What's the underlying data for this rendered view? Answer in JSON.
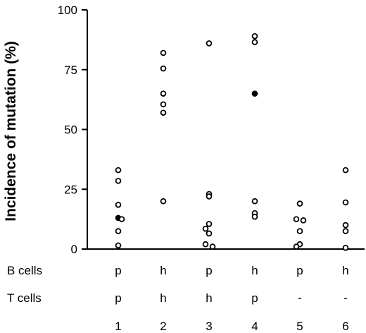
{
  "chart_data": {
    "type": "scatter",
    "ylabel": "Incidence of mutation (%)",
    "ylim": [
      0,
      100
    ],
    "yticks": [
      "0",
      "25",
      "50",
      "75",
      "100"
    ],
    "categories": [
      "1",
      "2",
      "3",
      "4",
      "5",
      "6"
    ],
    "rows": [
      {
        "label": "B cells",
        "values": [
          "p",
          "h",
          "p",
          "h",
          "p",
          "h"
        ]
      },
      {
        "label": "T cells",
        "values": [
          "p",
          "h",
          "h",
          "p",
          "-",
          "-"
        ]
      }
    ],
    "marker_colors": {
      "open": "#000000",
      "filled": "#000000"
    },
    "points": [
      {
        "x": 1,
        "y": 33,
        "filled": false,
        "offset": 0
      },
      {
        "x": 1,
        "y": 28.5,
        "filled": false,
        "offset": 0
      },
      {
        "x": 1,
        "y": 18.5,
        "filled": false,
        "offset": 0
      },
      {
        "x": 1,
        "y": 13,
        "filled": true,
        "offset": 0
      },
      {
        "x": 1,
        "y": 12.5,
        "filled": false,
        "offset": 1
      },
      {
        "x": 1,
        "y": 7.5,
        "filled": false,
        "offset": 0
      },
      {
        "x": 1,
        "y": 1.5,
        "filled": false,
        "offset": 0
      },
      {
        "x": 2,
        "y": 82,
        "filled": false,
        "offset": 0
      },
      {
        "x": 2,
        "y": 75.5,
        "filled": false,
        "offset": 0
      },
      {
        "x": 2,
        "y": 65,
        "filled": false,
        "offset": 0
      },
      {
        "x": 2,
        "y": 60.5,
        "filled": false,
        "offset": 0
      },
      {
        "x": 2,
        "y": 57,
        "filled": false,
        "offset": 0
      },
      {
        "x": 2,
        "y": 20,
        "filled": false,
        "offset": 0
      },
      {
        "x": 3,
        "y": 86,
        "filled": false,
        "offset": 0
      },
      {
        "x": 3,
        "y": 23,
        "filled": false,
        "offset": 0
      },
      {
        "x": 3,
        "y": 22,
        "filled": false,
        "offset": 0
      },
      {
        "x": 3,
        "y": 10.5,
        "filled": false,
        "offset": 0
      },
      {
        "x": 3,
        "y": 8.5,
        "filled": false,
        "offset": -1
      },
      {
        "x": 3,
        "y": 6.5,
        "filled": false,
        "offset": 0
      },
      {
        "x": 3,
        "y": 2,
        "filled": false,
        "offset": -1
      },
      {
        "x": 3,
        "y": 1,
        "filled": false,
        "offset": 1
      },
      {
        "x": 4,
        "y": 89,
        "filled": false,
        "offset": 0
      },
      {
        "x": 4,
        "y": 86.5,
        "filled": false,
        "offset": 0
      },
      {
        "x": 4,
        "y": 65,
        "filled": true,
        "offset": 0
      },
      {
        "x": 4,
        "y": 20,
        "filled": false,
        "offset": 0
      },
      {
        "x": 4,
        "y": 15,
        "filled": false,
        "offset": 0
      },
      {
        "x": 4,
        "y": 13.5,
        "filled": false,
        "offset": 0
      },
      {
        "x": 5,
        "y": 19,
        "filled": false,
        "offset": 0
      },
      {
        "x": 5,
        "y": 12.5,
        "filled": false,
        "offset": -1
      },
      {
        "x": 5,
        "y": 12,
        "filled": false,
        "offset": 1
      },
      {
        "x": 5,
        "y": 7.5,
        "filled": false,
        "offset": 0
      },
      {
        "x": 5,
        "y": 2,
        "filled": false,
        "offset": 0
      },
      {
        "x": 5,
        "y": 1,
        "filled": false,
        "offset": -1
      },
      {
        "x": 6,
        "y": 33,
        "filled": false,
        "offset": 0
      },
      {
        "x": 6,
        "y": 19.5,
        "filled": false,
        "offset": 0
      },
      {
        "x": 6,
        "y": 10,
        "filled": false,
        "offset": 0
      },
      {
        "x": 6,
        "y": 7.5,
        "filled": false,
        "offset": 0
      },
      {
        "x": 6,
        "y": 0.5,
        "filled": false,
        "offset": 0
      }
    ]
  }
}
